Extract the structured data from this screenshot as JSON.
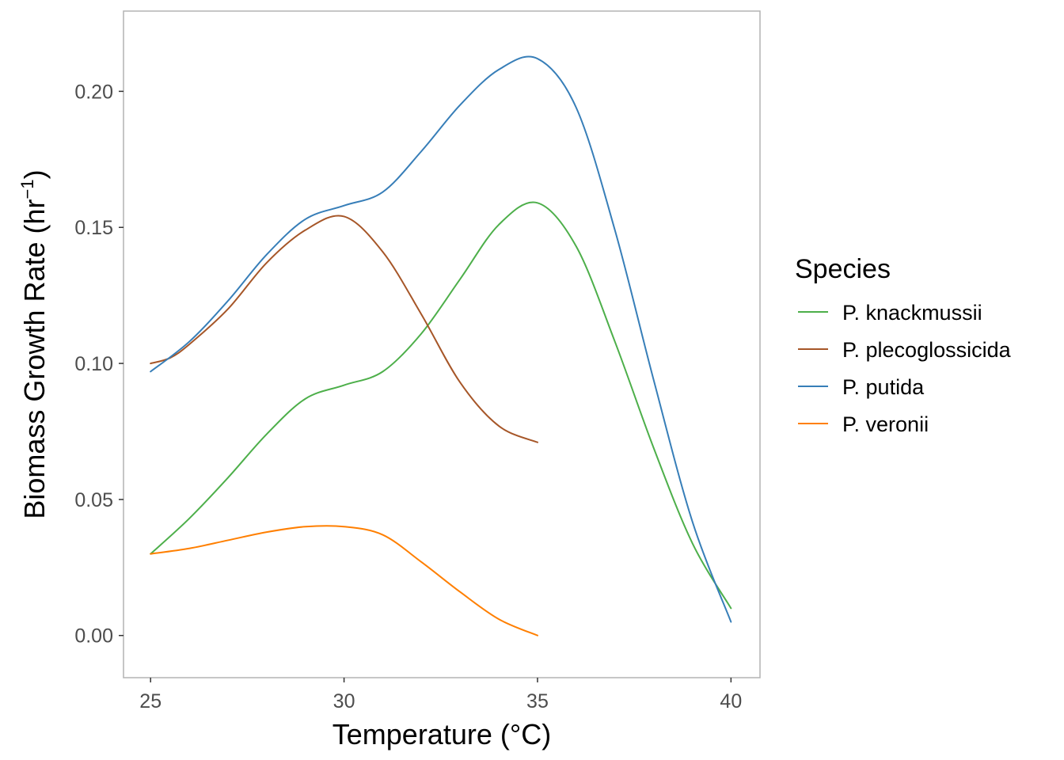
{
  "chart_data": {
    "type": "line",
    "xlabel": "Temperature (°C)",
    "ylabel_main": "Biomass Growth Rate (hr",
    "ylabel_sup": "−1",
    "ylabel_close": ")",
    "xlim": [
      24.3,
      40.75
    ],
    "ylim": [
      -0.0155,
      0.2295
    ],
    "x_ticks": [
      25,
      30,
      35,
      40
    ],
    "x_tick_labels": [
      "25",
      "30",
      "35",
      "40"
    ],
    "y_ticks": [
      0.0,
      0.05,
      0.1,
      0.15,
      0.2
    ],
    "y_tick_labels": [
      "0.00",
      "0.05",
      "0.10",
      "0.15",
      "0.20"
    ],
    "grid": false,
    "legend": {
      "title": "Species",
      "position": "right"
    },
    "series": [
      {
        "name": "P. knackmussii",
        "color": "#4daf4a",
        "x": [
          25,
          26,
          27,
          28,
          29,
          30,
          31,
          32,
          33,
          34,
          35,
          36,
          37,
          38,
          39,
          40
        ],
        "y": [
          0.03,
          0.043,
          0.058,
          0.074,
          0.087,
          0.092,
          0.097,
          0.111,
          0.131,
          0.151,
          0.159,
          0.143,
          0.108,
          0.069,
          0.034,
          0.01
        ]
      },
      {
        "name": "P. plecoglossicida",
        "color": "#a65628",
        "x": [
          25,
          25.5,
          26,
          27,
          28,
          29,
          30,
          31,
          32,
          33,
          34,
          35
        ],
        "y": [
          0.1,
          0.102,
          0.107,
          0.12,
          0.137,
          0.149,
          0.154,
          0.141,
          0.118,
          0.093,
          0.077,
          0.071
        ]
      },
      {
        "name": "P. putida",
        "color": "#377eb8",
        "x": [
          25,
          26,
          27,
          28,
          29,
          30,
          31,
          32,
          33,
          34,
          35,
          36,
          37,
          38,
          39,
          40
        ],
        "y": [
          0.097,
          0.108,
          0.123,
          0.14,
          0.153,
          0.158,
          0.163,
          0.178,
          0.195,
          0.208,
          0.212,
          0.194,
          0.149,
          0.094,
          0.042,
          0.005
        ]
      },
      {
        "name": "P. veronii",
        "color": "#ff7f00",
        "x": [
          25,
          26,
          27,
          28,
          29,
          30,
          31,
          32,
          33,
          34,
          35
        ],
        "y": [
          0.03,
          0.032,
          0.035,
          0.038,
          0.04,
          0.04,
          0.037,
          0.027,
          0.016,
          0.006,
          0.0
        ]
      }
    ]
  }
}
